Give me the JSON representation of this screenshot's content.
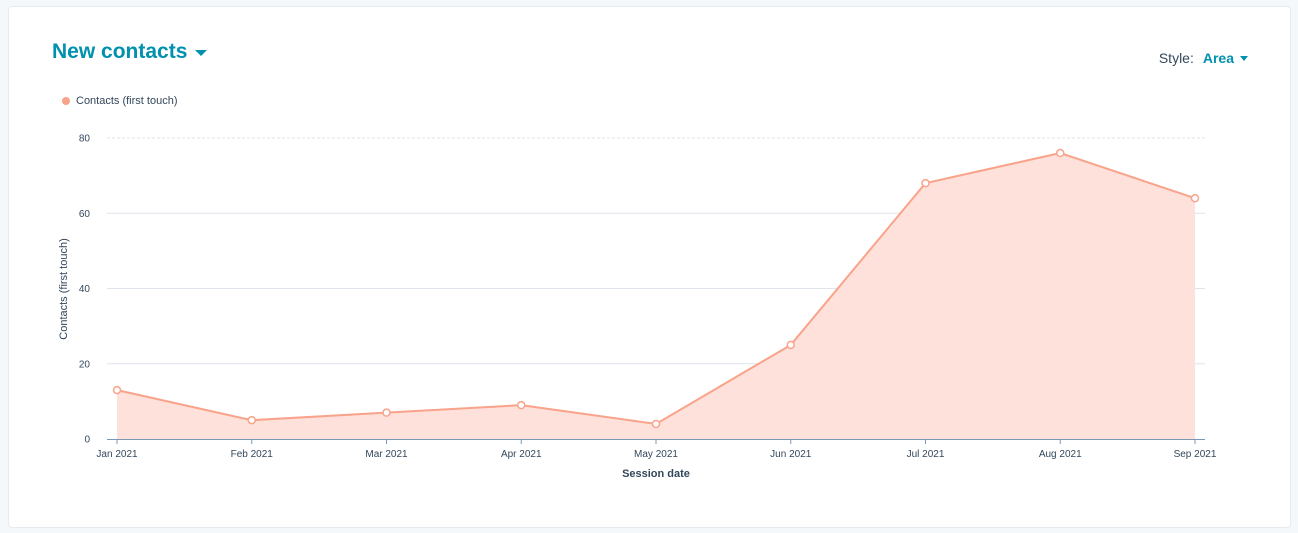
{
  "header": {
    "title": "New contacts",
    "style_label": "Style:",
    "style_value": "Area"
  },
  "colors": {
    "accent": "#0091ae",
    "series_line": "#f8a38a",
    "series_fill": "#ffe1db",
    "grid": "#dfe3eb"
  },
  "chart_data": {
    "type": "area",
    "categories": [
      "Jan 2021",
      "Feb 2021",
      "Mar 2021",
      "Apr 2021",
      "May 2021",
      "Jun 2021",
      "Jul 2021",
      "Aug 2021",
      "Sep 2021"
    ],
    "series": [
      {
        "name": "Contacts (first touch)",
        "values": [
          13,
          5,
          7,
          9,
          4,
          25,
          68,
          76,
          64
        ]
      }
    ],
    "xlabel": "Session date",
    "ylabel": "Contacts (first touch)",
    "ylim": [
      0,
      80
    ],
    "yticks": [
      0,
      20,
      40,
      60,
      80
    ],
    "grid": true,
    "legend": "top-left"
  }
}
